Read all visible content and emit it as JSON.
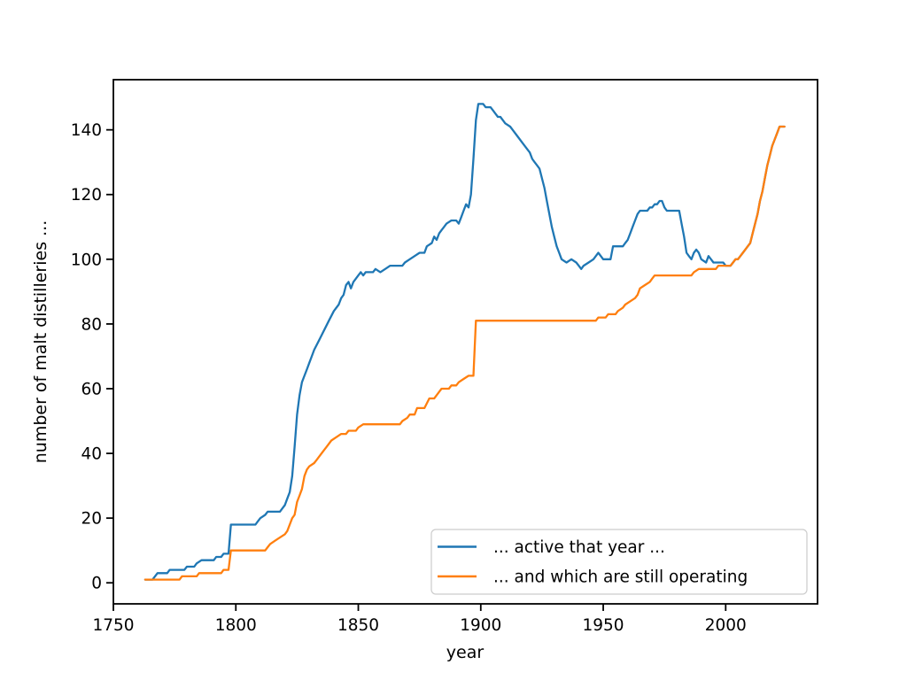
{
  "figure": {
    "background_color": "#ffffff",
    "axes_edge_color": "#000000",
    "xlabel": "year",
    "ylabel": "number of malt distilleries ..."
  },
  "legend": {
    "position": "lower right",
    "items": [
      {
        "label": "... active that year ...",
        "color": "#1f77b4"
      },
      {
        "label": "... and which are still operating",
        "color": "#ff7f0e"
      }
    ]
  },
  "chart_data": {
    "type": "line",
    "title": "",
    "xlabel": "year",
    "ylabel": "number of malt distilleries ...",
    "grid": false,
    "legend_position": "lower right",
    "xlim": [
      1750,
      2037.5
    ],
    "ylim": [
      -6.5,
      155.5
    ],
    "x_ticks": [
      1750,
      1800,
      1850,
      1900,
      1950,
      2000
    ],
    "y_ticks": [
      0,
      20,
      40,
      60,
      80,
      100,
      120,
      140
    ],
    "series": [
      {
        "name": "... active that year ...",
        "color": "#1f77b4",
        "points": [
          [
            1763,
            1
          ],
          [
            1766,
            1
          ],
          [
            1768,
            3
          ],
          [
            1772,
            3
          ],
          [
            1773,
            4
          ],
          [
            1779,
            4
          ],
          [
            1780,
            5
          ],
          [
            1783,
            5
          ],
          [
            1784,
            6
          ],
          [
            1786,
            7
          ],
          [
            1791,
            7
          ],
          [
            1792,
            8
          ],
          [
            1794,
            8
          ],
          [
            1795,
            9
          ],
          [
            1797,
            9
          ],
          [
            1798,
            18
          ],
          [
            1808,
            18
          ],
          [
            1809,
            19
          ],
          [
            1810,
            20
          ],
          [
            1812,
            21
          ],
          [
            1813,
            22
          ],
          [
            1818,
            22
          ],
          [
            1819,
            23
          ],
          [
            1820,
            24
          ],
          [
            1821,
            26
          ],
          [
            1822,
            28
          ],
          [
            1823,
            33
          ],
          [
            1824,
            42
          ],
          [
            1825,
            52
          ],
          [
            1826,
            58
          ],
          [
            1827,
            62
          ],
          [
            1828,
            64
          ],
          [
            1829,
            66
          ],
          [
            1830,
            68
          ],
          [
            1831,
            70
          ],
          [
            1832,
            72
          ],
          [
            1834,
            75
          ],
          [
            1836,
            78
          ],
          [
            1838,
            81
          ],
          [
            1840,
            84
          ],
          [
            1842,
            86
          ],
          [
            1843,
            88
          ],
          [
            1844,
            89
          ],
          [
            1845,
            92
          ],
          [
            1846,
            93
          ],
          [
            1847,
            91
          ],
          [
            1848,
            93
          ],
          [
            1849,
            94
          ],
          [
            1850,
            95
          ],
          [
            1851,
            96
          ],
          [
            1852,
            95
          ],
          [
            1853,
            96
          ],
          [
            1856,
            96
          ],
          [
            1857,
            97
          ],
          [
            1859,
            96
          ],
          [
            1861,
            97
          ],
          [
            1863,
            98
          ],
          [
            1868,
            98
          ],
          [
            1869,
            99
          ],
          [
            1871,
            100
          ],
          [
            1873,
            101
          ],
          [
            1875,
            102
          ],
          [
            1877,
            102
          ],
          [
            1878,
            104
          ],
          [
            1880,
            105
          ],
          [
            1881,
            107
          ],
          [
            1882,
            106
          ],
          [
            1883,
            108
          ],
          [
            1884,
            109
          ],
          [
            1885,
            110
          ],
          [
            1886,
            111
          ],
          [
            1888,
            112
          ],
          [
            1890,
            112
          ],
          [
            1891,
            111
          ],
          [
            1892,
            113
          ],
          [
            1893,
            115
          ],
          [
            1894,
            117
          ],
          [
            1895,
            116
          ],
          [
            1896,
            120
          ],
          [
            1897,
            131
          ],
          [
            1898,
            143
          ],
          [
            1899,
            148
          ],
          [
            1901,
            148
          ],
          [
            1902,
            147
          ],
          [
            1904,
            147
          ],
          [
            1905,
            146
          ],
          [
            1906,
            145
          ],
          [
            1907,
            144
          ],
          [
            1908,
            144
          ],
          [
            1909,
            143
          ],
          [
            1910,
            142
          ],
          [
            1912,
            141
          ],
          [
            1913,
            140
          ],
          [
            1915,
            138
          ],
          [
            1917,
            136
          ],
          [
            1919,
            134
          ],
          [
            1920,
            133
          ],
          [
            1921,
            131
          ],
          [
            1922,
            130
          ],
          [
            1923,
            129
          ],
          [
            1924,
            128
          ],
          [
            1925,
            125
          ],
          [
            1926,
            122
          ],
          [
            1927,
            118
          ],
          [
            1928,
            114
          ],
          [
            1929,
            110
          ],
          [
            1930,
            107
          ],
          [
            1931,
            104
          ],
          [
            1932,
            102
          ],
          [
            1933,
            100
          ],
          [
            1935,
            99
          ],
          [
            1937,
            100
          ],
          [
            1939,
            99
          ],
          [
            1940,
            98
          ],
          [
            1941,
            97
          ],
          [
            1942,
            98
          ],
          [
            1944,
            99
          ],
          [
            1946,
            100
          ],
          [
            1947,
            101
          ],
          [
            1948,
            102
          ],
          [
            1949,
            101
          ],
          [
            1950,
            100
          ],
          [
            1953,
            100
          ],
          [
            1954,
            104
          ],
          [
            1958,
            104
          ],
          [
            1959,
            105
          ],
          [
            1960,
            106
          ],
          [
            1961,
            108
          ],
          [
            1962,
            110
          ],
          [
            1963,
            112
          ],
          [
            1964,
            114
          ],
          [
            1965,
            115
          ],
          [
            1968,
            115
          ],
          [
            1969,
            116
          ],
          [
            1970,
            116
          ],
          [
            1971,
            117
          ],
          [
            1972,
            117
          ],
          [
            1973,
            118
          ],
          [
            1974,
            118
          ],
          [
            1975,
            116
          ],
          [
            1976,
            115
          ],
          [
            1981,
            115
          ],
          [
            1982,
            111
          ],
          [
            1983,
            107
          ],
          [
            1984,
            102
          ],
          [
            1985,
            101
          ],
          [
            1986,
            100
          ],
          [
            1987,
            102
          ],
          [
            1988,
            103
          ],
          [
            1989,
            102
          ],
          [
            1990,
            100
          ],
          [
            1992,
            99
          ],
          [
            1993,
            101
          ],
          [
            1994,
            100
          ],
          [
            1995,
            99
          ],
          [
            1999,
            99
          ],
          [
            2000,
            98
          ],
          [
            2002,
            98
          ],
          [
            2003,
            99
          ],
          [
            2004,
            100
          ],
          [
            2005,
            100
          ],
          [
            2006,
            101
          ],
          [
            2007,
            102
          ],
          [
            2008,
            103
          ],
          [
            2009,
            104
          ],
          [
            2010,
            105
          ],
          [
            2011,
            108
          ],
          [
            2012,
            111
          ],
          [
            2013,
            114
          ],
          [
            2014,
            118
          ],
          [
            2015,
            121
          ],
          [
            2016,
            125
          ],
          [
            2017,
            129
          ],
          [
            2018,
            132
          ],
          [
            2019,
            135
          ],
          [
            2020,
            137
          ],
          [
            2021,
            139
          ],
          [
            2022,
            141
          ],
          [
            2024,
            141
          ]
        ]
      },
      {
        "name": "... and which are still operating",
        "color": "#ff7f0e",
        "points": [
          [
            1763,
            1
          ],
          [
            1777,
            1
          ],
          [
            1778,
            2
          ],
          [
            1784,
            2
          ],
          [
            1785,
            3
          ],
          [
            1794,
            3
          ],
          [
            1795,
            4
          ],
          [
            1797,
            4
          ],
          [
            1798,
            10
          ],
          [
            1812,
            10
          ],
          [
            1813,
            11
          ],
          [
            1814,
            12
          ],
          [
            1816,
            13
          ],
          [
            1818,
            14
          ],
          [
            1820,
            15
          ],
          [
            1821,
            16
          ],
          [
            1822,
            18
          ],
          [
            1823,
            20
          ],
          [
            1824,
            21
          ],
          [
            1825,
            25
          ],
          [
            1826,
            27
          ],
          [
            1827,
            29
          ],
          [
            1828,
            33
          ],
          [
            1829,
            35
          ],
          [
            1830,
            36
          ],
          [
            1832,
            37
          ],
          [
            1833,
            38
          ],
          [
            1834,
            39
          ],
          [
            1836,
            41
          ],
          [
            1837,
            42
          ],
          [
            1839,
            44
          ],
          [
            1841,
            45
          ],
          [
            1843,
            46
          ],
          [
            1845,
            46
          ],
          [
            1846,
            47
          ],
          [
            1849,
            47
          ],
          [
            1850,
            48
          ],
          [
            1852,
            49
          ],
          [
            1867,
            49
          ],
          [
            1868,
            50
          ],
          [
            1870,
            51
          ],
          [
            1871,
            52
          ],
          [
            1873,
            52
          ],
          [
            1874,
            54
          ],
          [
            1877,
            54
          ],
          [
            1879,
            57
          ],
          [
            1881,
            57
          ],
          [
            1882,
            58
          ],
          [
            1883,
            59
          ],
          [
            1884,
            60
          ],
          [
            1887,
            60
          ],
          [
            1888,
            61
          ],
          [
            1890,
            61
          ],
          [
            1891,
            62
          ],
          [
            1893,
            63
          ],
          [
            1895,
            64
          ],
          [
            1897,
            64
          ],
          [
            1898,
            81
          ],
          [
            1947,
            81
          ],
          [
            1948,
            82
          ],
          [
            1951,
            82
          ],
          [
            1952,
            83
          ],
          [
            1955,
            83
          ],
          [
            1956,
            84
          ],
          [
            1958,
            85
          ],
          [
            1959,
            86
          ],
          [
            1961,
            87
          ],
          [
            1963,
            88
          ],
          [
            1964,
            89
          ],
          [
            1965,
            91
          ],
          [
            1967,
            92
          ],
          [
            1969,
            93
          ],
          [
            1970,
            94
          ],
          [
            1971,
            95
          ],
          [
            1986,
            95
          ],
          [
            1987,
            96
          ],
          [
            1989,
            97
          ],
          [
            1996,
            97
          ],
          [
            1997,
            98
          ],
          [
            2002,
            98
          ],
          [
            2003,
            99
          ],
          [
            2004,
            100
          ],
          [
            2005,
            100
          ],
          [
            2006,
            101
          ],
          [
            2007,
            102
          ],
          [
            2008,
            103
          ],
          [
            2009,
            104
          ],
          [
            2010,
            105
          ],
          [
            2011,
            108
          ],
          [
            2012,
            111
          ],
          [
            2013,
            114
          ],
          [
            2014,
            118
          ],
          [
            2015,
            121
          ],
          [
            2016,
            125
          ],
          [
            2017,
            129
          ],
          [
            2018,
            132
          ],
          [
            2019,
            135
          ],
          [
            2020,
            137
          ],
          [
            2021,
            139
          ],
          [
            2022,
            141
          ],
          [
            2024,
            141
          ]
        ]
      }
    ]
  }
}
